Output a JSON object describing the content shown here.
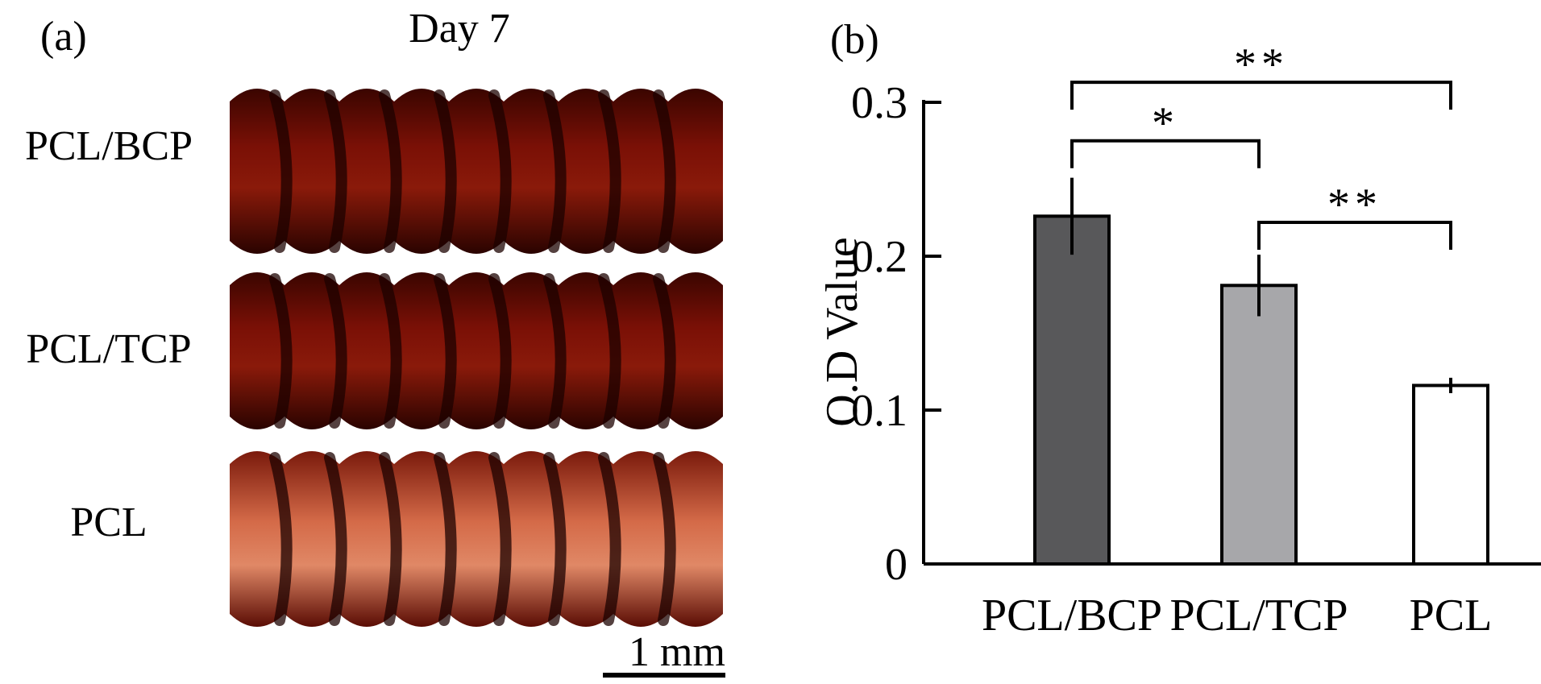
{
  "panel_a": {
    "label": "(a)",
    "title": "Day 7",
    "rows": [
      {
        "label": "PCL/BCP",
        "stain": "dark"
      },
      {
        "label": "PCL/TCP",
        "stain": "dark"
      },
      {
        "label": "PCL",
        "stain": "light"
      }
    ],
    "scale_bar": "1 mm",
    "colors": {
      "dark_stain": "#6e0c04",
      "light_stain": "#c85838",
      "groove": "#1c0200"
    }
  },
  "panel_b": {
    "label": "(b)",
    "chart_data": {
      "type": "bar",
      "categories": [
        "PCL/BCP",
        "PCL/TCP",
        "PCL"
      ],
      "values": [
        0.226,
        0.181,
        0.116
      ],
      "errors": [
        0.025,
        0.02,
        0.005
      ],
      "colors": [
        "#58585a",
        "#a7a7aa",
        "#ffffff"
      ],
      "ylabel": "O.D Value",
      "ylim": [
        0,
        0.3
      ],
      "yticks": [
        0,
        0.1,
        0.2,
        0.3
      ],
      "ytick_labels": [
        "0",
        "0.1",
        "0.2",
        "0.3"
      ],
      "grid": false,
      "significance": [
        {
          "from": 0,
          "to": 2,
          "label": "**",
          "level": 0.313
        },
        {
          "from": 0,
          "to": 1,
          "label": "*",
          "level": 0.275
        },
        {
          "from": 1,
          "to": 2,
          "label": "**",
          "level": 0.222
        }
      ]
    }
  }
}
